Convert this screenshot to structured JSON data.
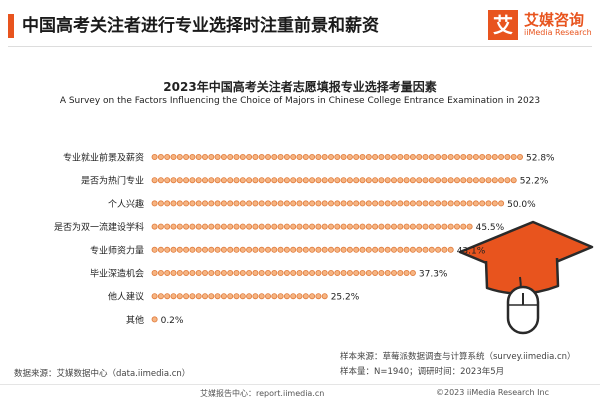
{
  "header": {
    "title": "中国高考关注者进行专业选择时注重前景和薪资",
    "logo_mark": "艾",
    "logo_name": "艾媒咨询",
    "logo_sub": "iiMedia Research"
  },
  "colors": {
    "accent": "#e8541e",
    "dot_fill": "#f6b583",
    "dot_stroke": "#e07a3a"
  },
  "chart_data": {
    "type": "bar",
    "title": "2023年中国高考关注者志愿填报专业选择考量因素",
    "subtitle": "A Survey on the Factors Influencing the Choice of Majors in Chinese College Entrance Examination in 2023",
    "categories": [
      "专业就业前景及薪资",
      "是否为热门专业",
      "个人兴趣",
      "是否为双一流建设学科",
      "专业师资力量",
      "毕业深造机会",
      "他人建议",
      "其他"
    ],
    "values": [
      52.8,
      52.2,
      50.0,
      45.5,
      43.1,
      37.3,
      25.2,
      0.2
    ],
    "labels": [
      "52.8%",
      "52.2%",
      "50.0%",
      "45.5%",
      "43.1%",
      "37.3%",
      "25.2%",
      "0.2%"
    ],
    "orientation": "horizontal",
    "unit": "%",
    "xlim": [
      0,
      55
    ],
    "grid": false
  },
  "notes": {
    "sample_source": "样本来源：草莓派数据调查与计算系统（survey.iimedia.cn）",
    "sample_size": "样本量：N=1940；调研时间：2023年5月",
    "data_source": "数据来源：艾媒数据中心（data.iimedia.cn）"
  },
  "footer": {
    "left": "艾媒报告中心：report.iimedia.cn",
    "right": "©2023  iiMedia Research  Inc"
  }
}
